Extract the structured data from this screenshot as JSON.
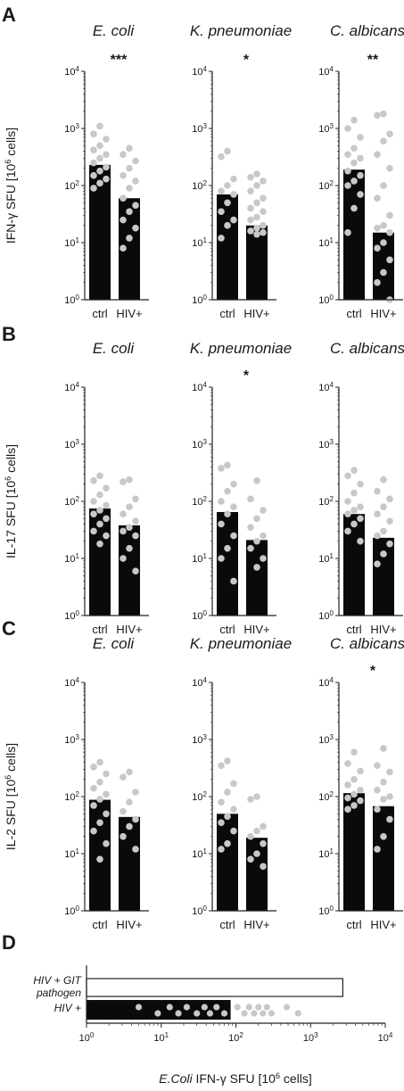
{
  "panels": [
    {
      "label": "A",
      "ylabel_main": "IFN-γ SFU [10",
      "ylabel_sup": "6",
      "ylabel_end": " cells]",
      "subplots": [
        {
          "title": "E. coli",
          "sig": "***"
        },
        {
          "title": "K. pneumoniae",
          "sig": "*"
        },
        {
          "title": "C. albicans",
          "sig": "**"
        }
      ]
    },
    {
      "label": "B",
      "ylabel_main": "IL-17 SFU [10",
      "ylabel_sup": "6",
      "ylabel_end": " cells]",
      "subplots": [
        {
          "title": "E. coli",
          "sig": ""
        },
        {
          "title": "K. pneumoniae",
          "sig": "*"
        },
        {
          "title": "C. albicans",
          "sig": ""
        }
      ]
    },
    {
      "label": "C",
      "ylabel_main": "IL-2 SFU [10",
      "ylabel_sup": "6",
      "ylabel_end": " cells]",
      "subplots": [
        {
          "title": "E. coli",
          "sig": ""
        },
        {
          "title": "K. pneumoniae",
          "sig": ""
        },
        {
          "title": "C. albicans",
          "sig": "*"
        }
      ]
    },
    {
      "label": "D",
      "row_labels": [
        "HIV + GIT",
        "pathogen",
        "HIV +"
      ],
      "xlabel_italic": "E.Coli",
      "xlabel_rest": " IFN-γ SFU [10",
      "xlabel_sup": "6",
      "xlabel_end": " cells]"
    }
  ],
  "chart_data": [
    {
      "type": "bar",
      "panel": "A",
      "title": "E. coli",
      "categories": [
        "ctrl",
        "HIV+"
      ],
      "yscale": "log",
      "ylim": [
        1,
        10000
      ],
      "values": [
        230,
        60
      ],
      "points": [
        [
          1100,
          800,
          650,
          500,
          420,
          350,
          300,
          250,
          210,
          180,
          150,
          130,
          110,
          90
        ],
        [
          450,
          350,
          270,
          200,
          150,
          120,
          90,
          60,
          45,
          35,
          25,
          18,
          12,
          8
        ]
      ]
    },
    {
      "type": "bar",
      "panel": "A",
      "title": "K. pneumoniae",
      "categories": [
        "ctrl",
        "HIV+"
      ],
      "yscale": "log",
      "ylim": [
        1,
        10000
      ],
      "values": [
        70,
        20
      ],
      "points": [
        [
          400,
          320,
          130,
          100,
          80,
          70,
          50,
          35,
          25,
          20,
          12
        ],
        [
          160,
          140,
          120,
          100,
          80,
          60,
          50,
          40,
          35,
          28,
          25,
          20,
          18,
          16,
          15,
          14
        ]
      ]
    },
    {
      "type": "bar",
      "panel": "A",
      "title": "C. albicans",
      "categories": [
        "ctrl",
        "HIV+"
      ],
      "yscale": "log",
      "ylim": [
        1,
        10000
      ],
      "values": [
        190,
        15
      ],
      "points": [
        [
          1400,
          1000,
          700,
          450,
          350,
          300,
          250,
          180,
          150,
          120,
          100,
          70,
          40,
          15
        ],
        [
          1800,
          1700,
          800,
          600,
          350,
          200,
          100,
          60,
          30,
          20,
          18,
          15,
          10,
          8,
          5,
          3,
          2,
          1
        ]
      ]
    },
    {
      "type": "bar",
      "panel": "B",
      "title": "E. coli",
      "categories": [
        "ctrl",
        "HIV+"
      ],
      "yscale": "log",
      "ylim": [
        1,
        10000
      ],
      "values": [
        75,
        38
      ],
      "points": [
        [
          280,
          230,
          170,
          130,
          100,
          85,
          70,
          60,
          50,
          40,
          30,
          25,
          18
        ],
        [
          240,
          220,
          110,
          80,
          60,
          45,
          35,
          30,
          25,
          15,
          10,
          6
        ]
      ]
    },
    {
      "type": "bar",
      "panel": "B",
      "title": "K. pneumoniae",
      "categories": [
        "ctrl",
        "HIV+"
      ],
      "yscale": "log",
      "ylim": [
        1,
        10000
      ],
      "values": [
        65,
        21
      ],
      "points": [
        [
          430,
          380,
          200,
          150,
          100,
          80,
          60,
          40,
          25,
          15,
          10,
          4
        ],
        [
          230,
          110,
          70,
          50,
          35,
          25,
          20,
          15,
          10,
          7
        ]
      ]
    },
    {
      "type": "bar",
      "panel": "B",
      "title": "C. albicans",
      "categories": [
        "ctrl",
        "HIV+"
      ],
      "yscale": "log",
      "ylim": [
        1,
        10000
      ],
      "values": [
        60,
        23
      ],
      "points": [
        [
          350,
          280,
          200,
          140,
          100,
          80,
          70,
          60,
          50,
          40,
          30,
          20
        ],
        [
          240,
          150,
          110,
          80,
          60,
          45,
          30,
          25,
          18,
          12,
          8
        ]
      ]
    },
    {
      "type": "bar",
      "panel": "C",
      "title": "E. coli",
      "categories": [
        "ctrl",
        "HIV+"
      ],
      "yscale": "log",
      "ylim": [
        1,
        10000
      ],
      "values": [
        88,
        44
      ],
      "points": [
        [
          400,
          330,
          250,
          180,
          140,
          110,
          90,
          70,
          50,
          35,
          25,
          15,
          8
        ],
        [
          270,
          220,
          120,
          80,
          55,
          40,
          30,
          20,
          12
        ]
      ]
    },
    {
      "type": "bar",
      "panel": "C",
      "title": "K. pneumoniae",
      "categories": [
        "ctrl",
        "HIV+"
      ],
      "yscale": "log",
      "ylim": [
        1,
        10000
      ],
      "values": [
        50,
        19
      ],
      "points": [
        [
          420,
          350,
          170,
          120,
          80,
          60,
          45,
          35,
          25,
          15,
          12
        ],
        [
          100,
          90,
          30,
          25,
          20,
          15,
          10,
          8,
          6
        ]
      ]
    },
    {
      "type": "bar",
      "panel": "C",
      "title": "C. albicans",
      "categories": [
        "ctrl",
        "HIV+"
      ],
      "yscale": "log",
      "ylim": [
        1,
        10000
      ],
      "values": [
        115,
        68
      ],
      "points": [
        [
          600,
          380,
          280,
          200,
          160,
          130,
          110,
          95,
          85,
          70,
          60
        ],
        [
          700,
          350,
          270,
          180,
          130,
          100,
          90,
          60,
          40,
          20,
          12
        ]
      ]
    },
    {
      "type": "bar",
      "panel": "D",
      "orientation": "horizontal",
      "xscale": "log",
      "xlim": [
        1,
        10000
      ],
      "categories": [
        "HIV + GIT pathogen",
        "HIV +"
      ],
      "values": [
        2700,
        85
      ],
      "points": [
        [],
        [
          5,
          9,
          13,
          17,
          22,
          30,
          38,
          45,
          55,
          70,
          105,
          130,
          150,
          175,
          200,
          230,
          260,
          300,
          480,
          680
        ]
      ]
    }
  ],
  "colors": {
    "bar": "#0a0a0a",
    "point": "#c8c8c8",
    "axis": "#222222",
    "open_bar_fill": "#ffffff"
  }
}
